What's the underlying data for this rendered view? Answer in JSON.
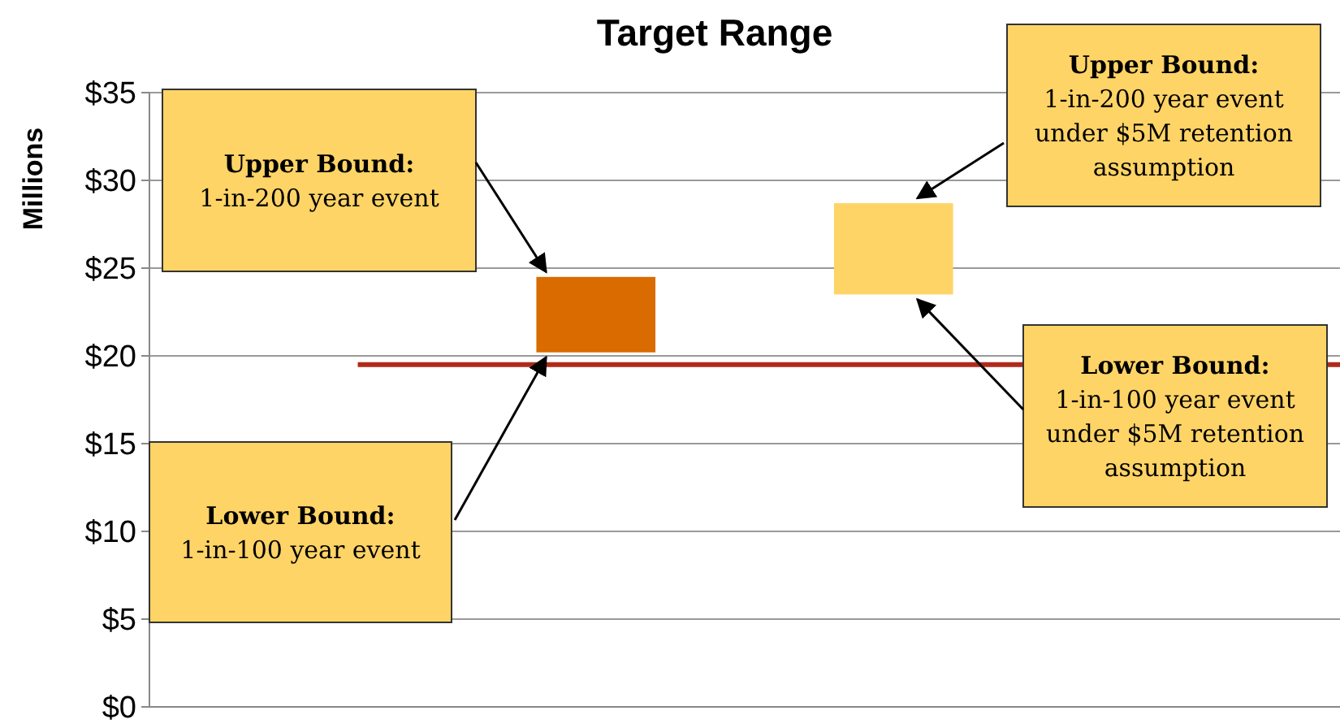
{
  "chart_data": {
    "type": "bar",
    "title": "Target Range",
    "ylabel": "Millions",
    "categories": [
      null,
      null,
      null,
      null
    ],
    "values": [
      null,
      4.3,
      5.2,
      null
    ],
    "base": [
      null,
      20.2,
      23.5,
      null
    ],
    "colors": [
      null,
      "#d96b00",
      "#ffd466",
      null
    ],
    "ylim": [
      0,
      35
    ],
    "yticks": [
      {
        "value": 0,
        "label": "$0"
      },
      {
        "value": 5,
        "label": "$5"
      },
      {
        "value": 10,
        "label": "$10"
      },
      {
        "value": 15,
        "label": "$15"
      },
      {
        "value": 20,
        "label": "$20"
      },
      {
        "value": 25,
        "label": "$25"
      },
      {
        "value": 30,
        "label": "$30"
      },
      {
        "value": 35,
        "label": "$35"
      }
    ],
    "grid": "y",
    "ref_lines": [
      {
        "axis": "y",
        "value": 19.5,
        "color": "#b02a1a"
      }
    ],
    "annotations": [
      "Upper Bound:\n1-in-200 year event",
      "Lower Bound:\n1-in-100 year event",
      "Upper Bound:\n1-in-200 year event\nunder $5M retention\nassumption",
      "Lower Bound:\n1-in-100 year event\nunder $5M retention\nassumption"
    ]
  }
}
